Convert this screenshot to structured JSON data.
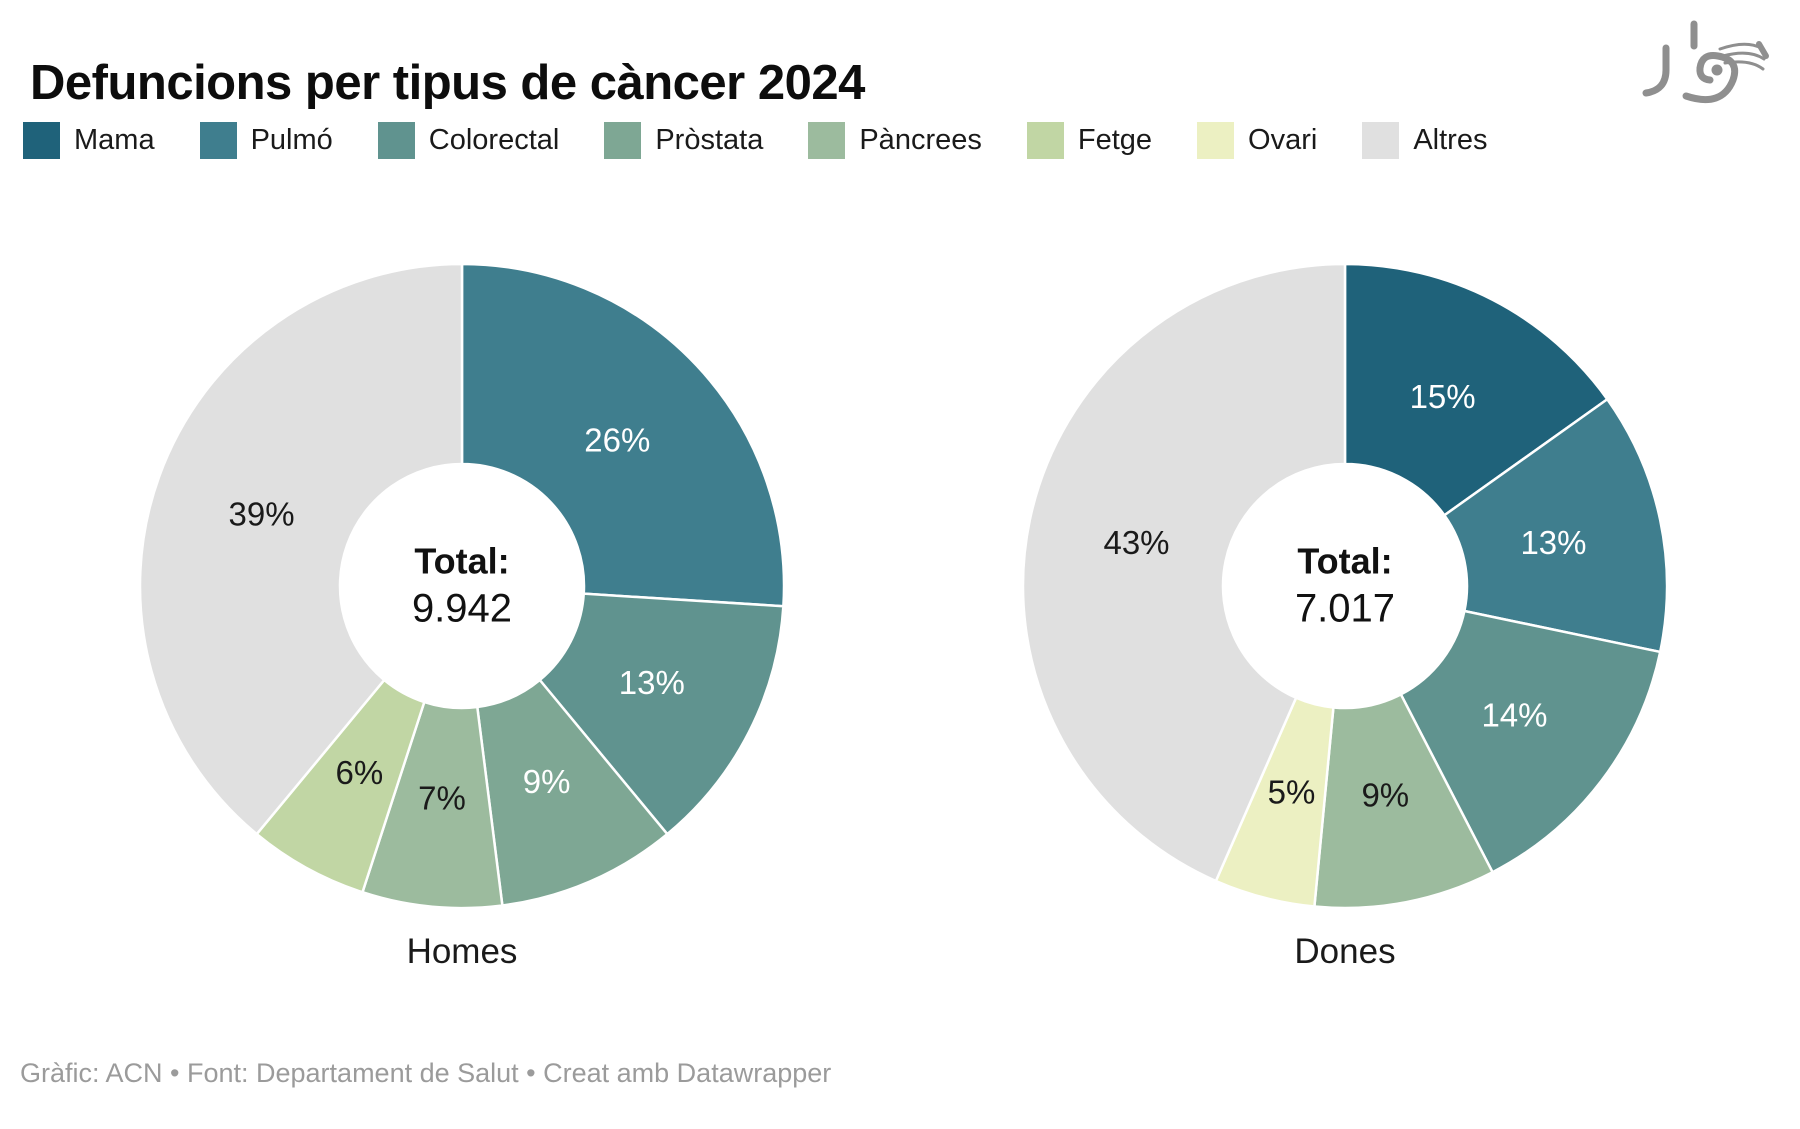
{
  "title": "Defuncions per tipus de càncer 2024",
  "legend": {
    "items": [
      {
        "label": "Mama",
        "color": "#1f627a"
      },
      {
        "label": "Pulmó",
        "color": "#3f7e8e"
      },
      {
        "label": "Colorectal",
        "color": "#60938f"
      },
      {
        "label": "Pròstata",
        "color": "#7ea794"
      },
      {
        "label": "Pàncrees",
        "color": "#9cbb9e"
      },
      {
        "label": "Fetge",
        "color": "#c1d6a4"
      },
      {
        "label": "Ovari",
        "color": "#ecf0c2"
      },
      {
        "label": "Altres",
        "color": "#e0e0e0"
      }
    ]
  },
  "chart_data": [
    {
      "type": "pie",
      "subtype": "donut",
      "title": "Homes",
      "center_label": "Total:",
      "center_value": "9.942",
      "start_angle_deg": 0,
      "direction": "clockwise",
      "hole_ratio": 0.38,
      "legend_position": "top",
      "slices": [
        {
          "category": "Pulmó",
          "value": 26,
          "display": "26%",
          "color": "#3f7e8e",
          "label_color": "#ffffff"
        },
        {
          "category": "Colorectal",
          "value": 13,
          "display": "13%",
          "color": "#60938f",
          "label_color": "#ffffff"
        },
        {
          "category": "Pròstata",
          "value": 9,
          "display": "9%",
          "color": "#7ea794",
          "label_color": "#ffffff"
        },
        {
          "category": "Pàncrees",
          "value": 7,
          "display": "7%",
          "color": "#9cbb9e",
          "label_color": "#1a1a1a"
        },
        {
          "category": "Fetge",
          "value": 6,
          "display": "6%",
          "color": "#c1d6a4",
          "label_color": "#1a1a1a"
        },
        {
          "category": "Altres",
          "value": 39,
          "display": "39%",
          "color": "#e0e0e0",
          "label_color": "#1a1a1a"
        }
      ]
    },
    {
      "type": "pie",
      "subtype": "donut",
      "title": "Dones",
      "center_label": "Total:",
      "center_value": "7.017",
      "start_angle_deg": 0,
      "direction": "clockwise",
      "hole_ratio": 0.38,
      "legend_position": "top",
      "slices": [
        {
          "category": "Mama",
          "value": 15,
          "display": "15%",
          "color": "#1f627a",
          "label_color": "#ffffff"
        },
        {
          "category": "Pulmó",
          "value": 13,
          "display": "13%",
          "color": "#3f7e8e",
          "label_color": "#ffffff"
        },
        {
          "category": "Colorectal",
          "value": 14,
          "display": "14%",
          "color": "#60938f",
          "label_color": "#ffffff"
        },
        {
          "category": "Pàncrees",
          "value": 9,
          "display": "9%",
          "color": "#9cbb9e",
          "label_color": "#1a1a1a"
        },
        {
          "category": "Ovari",
          "value": 5,
          "display": "5%",
          "color": "#ecf0c2",
          "label_color": "#1a1a1a"
        },
        {
          "category": "Altres",
          "value": 43,
          "display": "43%",
          "color": "#e0e0e0",
          "label_color": "#1a1a1a"
        }
      ]
    }
  ],
  "footer": "Gràfic: ACN • Font: Departament de Salut • Creat amb Datawrapper"
}
